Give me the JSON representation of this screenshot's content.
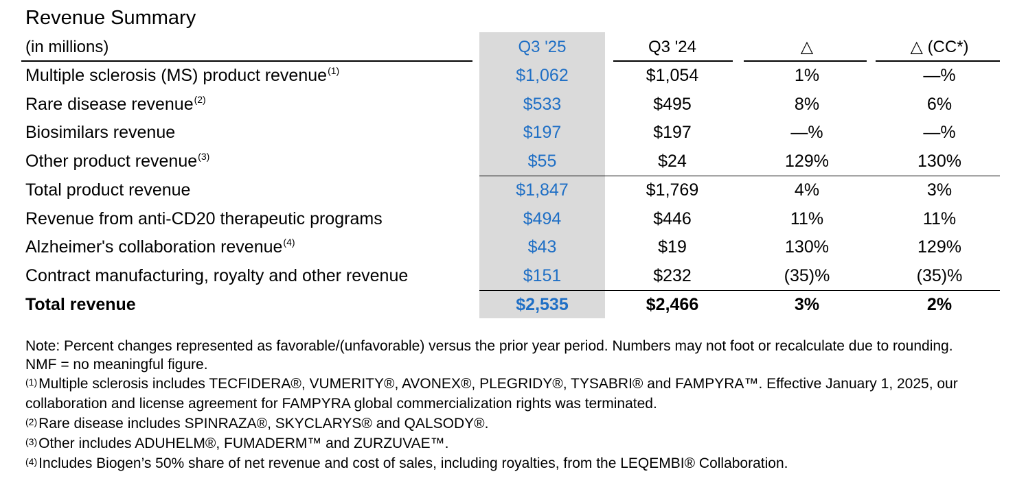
{
  "title": "Revenue Summary",
  "columns": {
    "label": "(in millions)",
    "q3_25": "Q3 '25",
    "q3_24": "Q3 '24",
    "delta": "△",
    "delta_cc": "△ (CC*)"
  },
  "rows": [
    {
      "label": "Multiple sclerosis (MS) product revenue",
      "sup": "(1)",
      "q3_25": "$1,062",
      "q3_24": "$1,054",
      "delta": "1%",
      "delta_cc": "—%"
    },
    {
      "label": "Rare disease revenue",
      "sup": "(2)",
      "q3_25": "$533",
      "q3_24": "$495",
      "delta": "8%",
      "delta_cc": "6%"
    },
    {
      "label": "Biosimilars revenue",
      "sup": "",
      "q3_25": "$197",
      "q3_24": "$197",
      "delta": "—%",
      "delta_cc": "—%"
    },
    {
      "label": "Other product revenue",
      "sup": "(3)",
      "q3_25": "$55",
      "q3_24": "$24",
      "delta": "129%",
      "delta_cc": "130%"
    },
    {
      "label": "Total product revenue",
      "sup": "",
      "q3_25": "$1,847",
      "q3_24": "$1,769",
      "delta": "4%",
      "delta_cc": "3%"
    },
    {
      "label": "Revenue from anti-CD20 therapeutic programs",
      "sup": "",
      "q3_25": "$494",
      "q3_24": "$446",
      "delta": "11%",
      "delta_cc": "11%"
    },
    {
      "label": "Alzheimer's collaboration revenue",
      "sup": "(4)",
      "q3_25": "$43",
      "q3_24": "$19",
      "delta": "130%",
      "delta_cc": "129%"
    },
    {
      "label": "Contract manufacturing, royalty and other revenue",
      "sup": "",
      "q3_25": "$151",
      "q3_24": "$232",
      "delta": "(35)%",
      "delta_cc": "(35)%"
    },
    {
      "label": "Total revenue",
      "sup": "",
      "q3_25": "$2,535",
      "q3_24": "$2,466",
      "delta": "3%",
      "delta_cc": "2%"
    }
  ],
  "notes": {
    "note": "Note: Percent changes represented as favorable/(unfavorable) versus the prior year period. Numbers may not foot or recalculate due to rounding.",
    "nmf": "NMF = no meaningful figure.",
    "footnotes": [
      {
        "marker": "(1)",
        "text": "Multiple sclerosis includes TECFIDERA®, VUMERITY®, AVONEX®, PLEGRIDY®, TYSABRI® and FAMPYRA™. Effective January 1, 2025, our collaboration and license agreement for FAMPYRA global commercialization rights was terminated."
      },
      {
        "marker": "(2)",
        "text": "Rare disease includes SPINRAZA®, SKYCLARYS® and QALSODY®."
      },
      {
        "marker": "(3)",
        "text": "Other includes ADUHELM®, FUMADERM™ and ZURZUVAE™."
      },
      {
        "marker": "(4)",
        "text": "Includes Biogen’s 50% share of net revenue and cost of sales, including royalties, from the LEQEMBI® Collaboration."
      }
    ]
  },
  "colors": {
    "highlight_background": "#dadada",
    "highlight_text": "#1f6fc5",
    "text": "#000000"
  }
}
